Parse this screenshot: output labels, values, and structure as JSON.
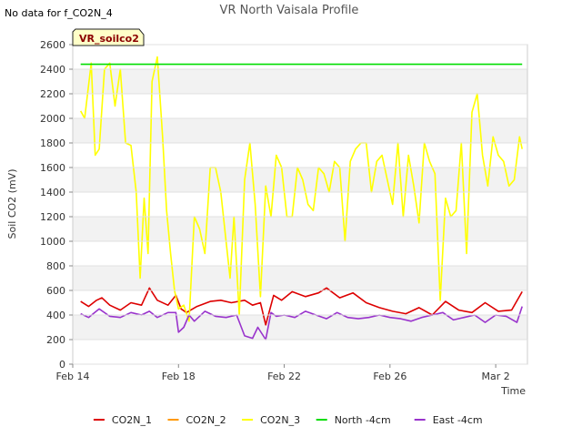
{
  "note": "No data for f_CO2N_4",
  "badge": "VR_soilco2",
  "chart_data": {
    "type": "line",
    "title": "VR North Vaisala Profile",
    "xlabel": "Time",
    "ylabel": "Soil CO2 (mV)",
    "xlim": [
      0,
      17.2
    ],
    "ylim": [
      0,
      2600
    ],
    "yticks": [
      0,
      200,
      400,
      600,
      800,
      1000,
      1200,
      1400,
      1600,
      1800,
      2000,
      2200,
      2400,
      2600
    ],
    "xticks": [
      {
        "value": 0,
        "label": "Feb 14"
      },
      {
        "value": 4,
        "label": "Feb 18"
      },
      {
        "value": 8,
        "label": "Feb 22"
      },
      {
        "value": 12,
        "label": "Feb 26"
      },
      {
        "value": 16,
        "label": "Mar 2"
      }
    ],
    "grid": true,
    "legend_position": "bottom",
    "series": [
      {
        "name": "CO2N_1",
        "color": "#dd0000",
        "x": [
          0.3,
          0.6,
          0.9,
          1.1,
          1.4,
          1.8,
          2.2,
          2.6,
          2.9,
          3.2,
          3.6,
          3.9,
          4.1,
          4.3,
          4.7,
          5.2,
          5.6,
          6.0,
          6.5,
          6.8,
          7.1,
          7.3,
          7.6,
          7.9,
          8.3,
          8.8,
          9.3,
          9.6,
          10.1,
          10.6,
          11.1,
          11.6,
          12.1,
          12.6,
          13.1,
          13.6,
          14.1,
          14.6,
          15.1,
          15.6,
          16.1,
          16.6,
          17.0
        ],
        "values": [
          510,
          470,
          520,
          540,
          480,
          440,
          500,
          480,
          620,
          520,
          480,
          560,
          450,
          420,
          470,
          510,
          520,
          500,
          520,
          480,
          500,
          320,
          560,
          520,
          590,
          550,
          580,
          620,
          540,
          580,
          500,
          460,
          430,
          410,
          460,
          400,
          510,
          440,
          420,
          500,
          430,
          440,
          590
        ]
      },
      {
        "name": "CO2N_2",
        "color": "#ff9900",
        "x": [],
        "values": []
      },
      {
        "name": "CO2N_3",
        "color": "#ffff00",
        "x": [
          0.3,
          0.45,
          0.7,
          0.85,
          1.0,
          1.2,
          1.4,
          1.6,
          1.8,
          2.0,
          2.2,
          2.4,
          2.55,
          2.7,
          2.85,
          3.0,
          3.2,
          3.4,
          3.55,
          3.7,
          3.85,
          4.0,
          4.2,
          4.4,
          4.6,
          4.8,
          5.0,
          5.2,
          5.4,
          5.6,
          5.8,
          5.95,
          6.1,
          6.3,
          6.5,
          6.7,
          6.9,
          7.1,
          7.3,
          7.5,
          7.7,
          7.9,
          8.1,
          8.3,
          8.5,
          8.7,
          8.9,
          9.1,
          9.3,
          9.5,
          9.7,
          9.9,
          10.1,
          10.3,
          10.5,
          10.7,
          10.9,
          11.1,
          11.3,
          11.5,
          11.7,
          11.9,
          12.1,
          12.3,
          12.5,
          12.7,
          12.9,
          13.1,
          13.3,
          13.5,
          13.7,
          13.9,
          14.1,
          14.3,
          14.5,
          14.7,
          14.9,
          15.1,
          15.3,
          15.5,
          15.7,
          15.9,
          16.1,
          16.3,
          16.5,
          16.7,
          16.9,
          17.0
        ],
        "values": [
          2060,
          2000,
          2450,
          1700,
          1750,
          2400,
          2450,
          2100,
          2400,
          1800,
          1780,
          1400,
          700,
          1350,
          900,
          2300,
          2500,
          1850,
          1250,
          900,
          600,
          450,
          480,
          350,
          1200,
          1100,
          900,
          1600,
          1600,
          1400,
          1000,
          700,
          1200,
          400,
          1500,
          1800,
          1300,
          550,
          1450,
          1200,
          1700,
          1600,
          1200,
          1200,
          1600,
          1500,
          1300,
          1250,
          1600,
          1550,
          1400,
          1650,
          1600,
          1000,
          1650,
          1750,
          1800,
          1800,
          1400,
          1650,
          1700,
          1500,
          1300,
          1800,
          1200,
          1700,
          1450,
          1150,
          1800,
          1650,
          1550,
          520,
          1350,
          1200,
          1250,
          1800,
          900,
          2050,
          2200,
          1700,
          1450,
          1850,
          1700,
          1650,
          1450,
          1500,
          1850,
          1750
        ]
      },
      {
        "name": "North -4cm",
        "color": "#00dd00",
        "x": [
          0.3,
          17.0
        ],
        "values": [
          2440,
          2440
        ]
      },
      {
        "name": "East -4cm",
        "color": "#9933cc",
        "x": [
          0.3,
          0.6,
          1.0,
          1.4,
          1.8,
          2.2,
          2.6,
          2.9,
          3.2,
          3.6,
          3.9,
          4.0,
          4.2,
          4.4,
          4.6,
          5.0,
          5.4,
          5.8,
          6.2,
          6.5,
          6.8,
          7.0,
          7.3,
          7.5,
          7.7,
          8.0,
          8.4,
          8.8,
          9.2,
          9.6,
          10.0,
          10.4,
          10.8,
          11.2,
          11.6,
          12.0,
          12.4,
          12.8,
          13.2,
          13.6,
          14.0,
          14.4,
          14.8,
          15.2,
          15.6,
          16.0,
          16.4,
          16.8,
          17.0
        ],
        "values": [
          410,
          380,
          450,
          390,
          380,
          420,
          400,
          430,
          380,
          420,
          420,
          260,
          300,
          400,
          350,
          430,
          390,
          380,
          400,
          230,
          210,
          300,
          200,
          420,
          390,
          400,
          380,
          430,
          400,
          370,
          420,
          380,
          370,
          380,
          400,
          380,
          370,
          350,
          380,
          400,
          420,
          360,
          380,
          400,
          340,
          400,
          390,
          340,
          470
        ]
      }
    ]
  }
}
